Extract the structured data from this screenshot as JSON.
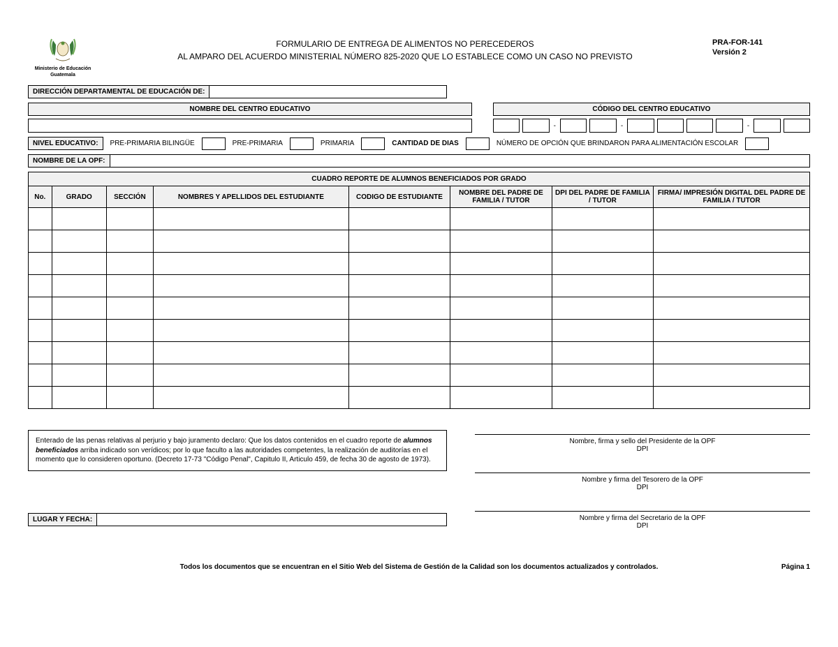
{
  "header": {
    "logo_line1": "Ministerio de Educación",
    "logo_line2": "Guatemala",
    "title_line1": "FORMULARIO DE ENTREGA DE ALIMENTOS NO PERECEDEROS",
    "title_line2": "AL AMPARO DEL ACUERDO MINISTERIAL NÚMERO 825-2020 QUE LO ESTABLECE COMO UN CASO NO PREVISTO",
    "form_code": "PRA-FOR-141",
    "version": "Versión 2"
  },
  "fields": {
    "direccion_label": "DIRECCIÓN DEPARTAMENTAL DE EDUCACIÓN DE:",
    "nombre_centro_label": "NOMBRE DEL CENTRO EDUCATIVO",
    "codigo_centro_label": "CÓDIGO DEL CENTRO EDUCATIVO",
    "nivel_label": "NIVEL EDUCATIVO:",
    "nivel_opts": [
      "PRE-PRIMARIA BILINGÜE",
      "PRE-PRIMARIA",
      "PRIMARIA"
    ],
    "cantidad_dias_label": "CANTIDAD DE DIAS",
    "numero_opcion_label": "NÚMERO DE OPCIÓN QUE BRINDARON PARA ALIMENTACIÓN ESCOLAR",
    "nombre_opf_label": "NOMBRE DE LA OPF:"
  },
  "table": {
    "title": "CUADRO REPORTE DE ALUMNOS BENEFICIADOS POR GRADO",
    "columns": [
      "No.",
      "GRADO",
      "SECCIÓN",
      "NOMBRES Y APELLIDOS DEL ESTUDIANTE",
      "CODIGO DE ESTUDIANTE",
      "NOMBRE DEL PADRE DE FAMILIA / TUTOR",
      "DPI DEL PADRE DE FAMILIA / TUTOR",
      "FIRMA/ IMPRESIÓN DIGITAL DEL PADRE DE FAMILIA / TUTOR"
    ],
    "col_widths": [
      "3%",
      "7%",
      "6%",
      "25%",
      "13%",
      "13%",
      "13%",
      "20%"
    ],
    "row_count": 9
  },
  "declaration": {
    "text_before": "Enterado de las penas relativas al perjurio y bajo juramento declaro: Que los datos contenidos en el cuadro reporte de ",
    "italic": "alumnos beneficiados",
    "text_after": " arriba indicado son verídicos; por lo que faculto a las autoridades competentes, la realización de auditorías en el momento que lo consideren oportuno. (Decreto 17-73 \"Código Penal\", Capitulo II, Articulo 459, de fecha 30 de agosto de 1973)."
  },
  "signatures": [
    {
      "title": "Nombre, firma y sello del Presidente de la OPF",
      "sub": "DPI"
    },
    {
      "title": "Nombre y firma del Tesorero de la OPF",
      "sub": "DPI"
    },
    {
      "title": "Nombre y firma del Secretario de la OPF",
      "sub": "DPI"
    }
  ],
  "lugar_fecha_label": "LUGAR Y FECHA:",
  "footer": {
    "text": "Todos los documentos que se encuentran en el Sitio Web del Sistema de Gestión de la Calidad son los documentos actualizados y controlados.",
    "page": "Página 1"
  },
  "colors": {
    "header_bg": "#f0f0f0",
    "border": "#000000",
    "text": "#000000",
    "page": "#ffffff"
  }
}
